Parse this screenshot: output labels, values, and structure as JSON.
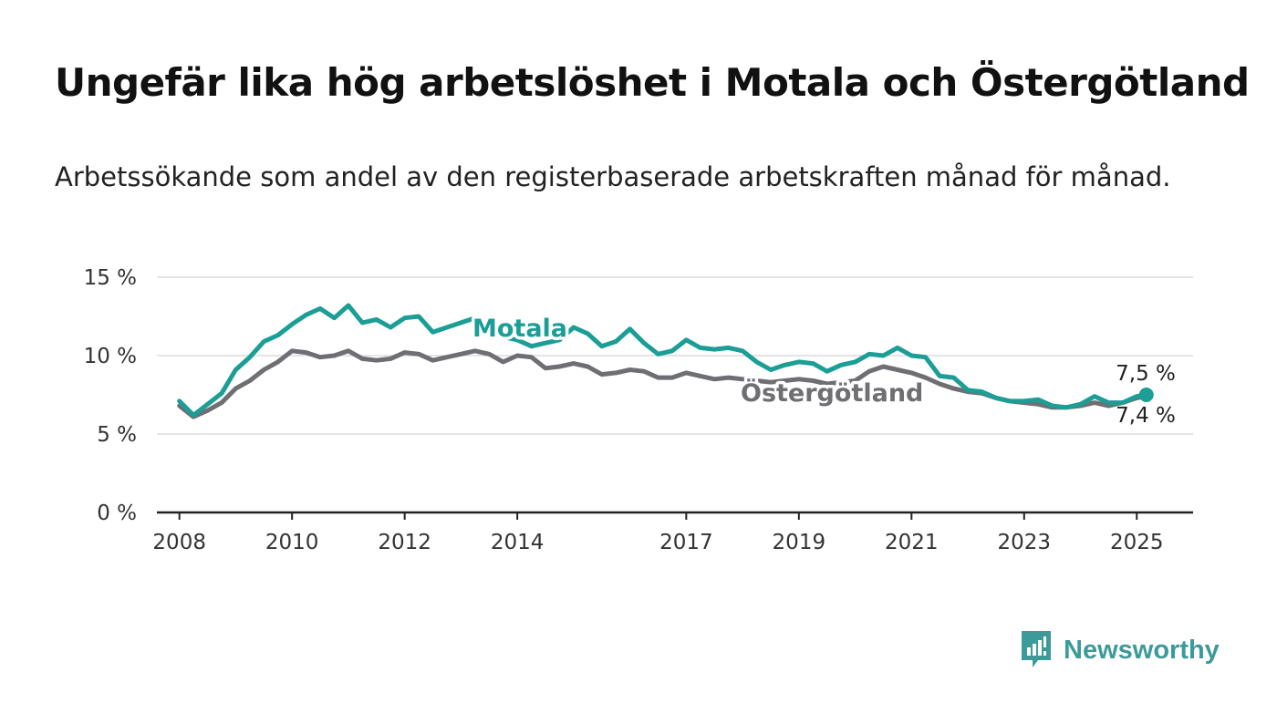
{
  "title": "Ungefär lika hög arbetslöshet i Motala och Östergötland",
  "subtitle": "Arbetssökande som andel av den registerbaserade arbetskraften månad för månad.",
  "brand": {
    "name": "Newsworthy",
    "icon": "newsworthy-logo-icon",
    "color": "#3d9a9a"
  },
  "chart_data": {
    "type": "line",
    "title": "Ungefär lika hög arbetslöshet i Motala och Östergötland",
    "subtitle": "Arbetssökande som andel av den registerbaserade arbetskraften månad för månad.",
    "xlabel": "",
    "ylabel": "",
    "ylim": [
      0,
      15
    ],
    "xlim": [
      2007.6,
      2026.0
    ],
    "yticks": [
      0,
      5,
      10,
      15
    ],
    "ytick_labels": [
      "0 %",
      "5 %",
      "10 %",
      "15 %"
    ],
    "xticks": [
      2008,
      2010,
      2012,
      2014,
      2017,
      2019,
      2021,
      2023,
      2025
    ],
    "xtick_labels": [
      "2008",
      "2010",
      "2012",
      "2014",
      "2017",
      "2019",
      "2021",
      "2023",
      "2025"
    ],
    "grid": true,
    "legend": "inline labels",
    "series": [
      {
        "name": "Motala",
        "color": "#1a9e96",
        "end_label": "7,5 %",
        "x": [
          2008.0,
          2008.25,
          2008.5,
          2008.75,
          2009.0,
          2009.25,
          2009.5,
          2009.75,
          2010.0,
          2010.25,
          2010.5,
          2010.75,
          2011.0,
          2011.25,
          2011.5,
          2011.75,
          2012.0,
          2012.25,
          2012.5,
          2012.75,
          2013.0,
          2013.25,
          2013.5,
          2013.75,
          2014.0,
          2014.25,
          2014.5,
          2014.75,
          2015.0,
          2015.25,
          2015.5,
          2015.75,
          2016.0,
          2016.25,
          2016.5,
          2016.75,
          2017.0,
          2017.25,
          2017.5,
          2017.75,
          2018.0,
          2018.25,
          2018.5,
          2018.75,
          2019.0,
          2019.25,
          2019.5,
          2019.75,
          2020.0,
          2020.25,
          2020.5,
          2020.75,
          2021.0,
          2021.25,
          2021.5,
          2021.75,
          2022.0,
          2022.25,
          2022.5,
          2022.75,
          2023.0,
          2023.25,
          2023.5,
          2023.75,
          2024.0,
          2024.25,
          2024.5,
          2024.75,
          2025.0,
          2025.17
        ],
        "values": [
          7.1,
          6.2,
          6.9,
          7.6,
          9.1,
          9.9,
          10.9,
          11.3,
          12.0,
          12.6,
          13.0,
          12.4,
          13.2,
          12.1,
          12.3,
          11.8,
          12.4,
          12.5,
          11.5,
          11.8,
          12.1,
          12.4,
          11.8,
          11.2,
          11.0,
          10.6,
          10.8,
          11.0,
          11.8,
          11.4,
          10.6,
          10.9,
          11.7,
          10.8,
          10.1,
          10.3,
          11.0,
          10.5,
          10.4,
          10.5,
          10.3,
          9.6,
          9.1,
          9.4,
          9.6,
          9.5,
          9.0,
          9.4,
          9.6,
          10.1,
          10.0,
          10.5,
          10.0,
          9.9,
          8.7,
          8.6,
          7.8,
          7.7,
          7.3,
          7.1,
          7.1,
          7.2,
          6.8,
          6.7,
          6.9,
          7.4,
          7.0,
          7.0,
          7.4,
          7.5
        ]
      },
      {
        "name": "Östergötland",
        "color": "#6e6e73",
        "end_label": "7,4 %",
        "x": [
          2008.0,
          2008.25,
          2008.5,
          2008.75,
          2009.0,
          2009.25,
          2009.5,
          2009.75,
          2010.0,
          2010.25,
          2010.5,
          2010.75,
          2011.0,
          2011.25,
          2011.5,
          2011.75,
          2012.0,
          2012.25,
          2012.5,
          2012.75,
          2013.0,
          2013.25,
          2013.5,
          2013.75,
          2014.0,
          2014.25,
          2014.5,
          2014.75,
          2015.0,
          2015.25,
          2015.5,
          2015.75,
          2016.0,
          2016.25,
          2016.5,
          2016.75,
          2017.0,
          2017.25,
          2017.5,
          2017.75,
          2018.0,
          2018.25,
          2018.5,
          2018.75,
          2019.0,
          2019.25,
          2019.5,
          2019.75,
          2020.0,
          2020.25,
          2020.5,
          2020.75,
          2021.0,
          2021.25,
          2021.5,
          2021.75,
          2022.0,
          2022.25,
          2022.5,
          2022.75,
          2023.0,
          2023.25,
          2023.5,
          2023.75,
          2024.0,
          2024.25,
          2024.5,
          2024.75,
          2025.0,
          2025.17
        ],
        "values": [
          6.8,
          6.1,
          6.5,
          7.0,
          7.9,
          8.4,
          9.1,
          9.6,
          10.3,
          10.2,
          9.9,
          10.0,
          10.3,
          9.8,
          9.7,
          9.8,
          10.2,
          10.1,
          9.7,
          9.9,
          10.1,
          10.3,
          10.1,
          9.6,
          10.0,
          9.9,
          9.2,
          9.3,
          9.5,
          9.3,
          8.8,
          8.9,
          9.1,
          9.0,
          8.6,
          8.6,
          8.9,
          8.7,
          8.5,
          8.6,
          8.5,
          8.4,
          8.3,
          8.4,
          8.5,
          8.4,
          8.2,
          8.3,
          8.4,
          9.0,
          9.3,
          9.1,
          8.9,
          8.6,
          8.2,
          7.9,
          7.7,
          7.6,
          7.3,
          7.1,
          7.0,
          6.9,
          6.7,
          6.7,
          6.8,
          7.0,
          6.8,
          7.0,
          7.3,
          7.4
        ]
      }
    ]
  }
}
